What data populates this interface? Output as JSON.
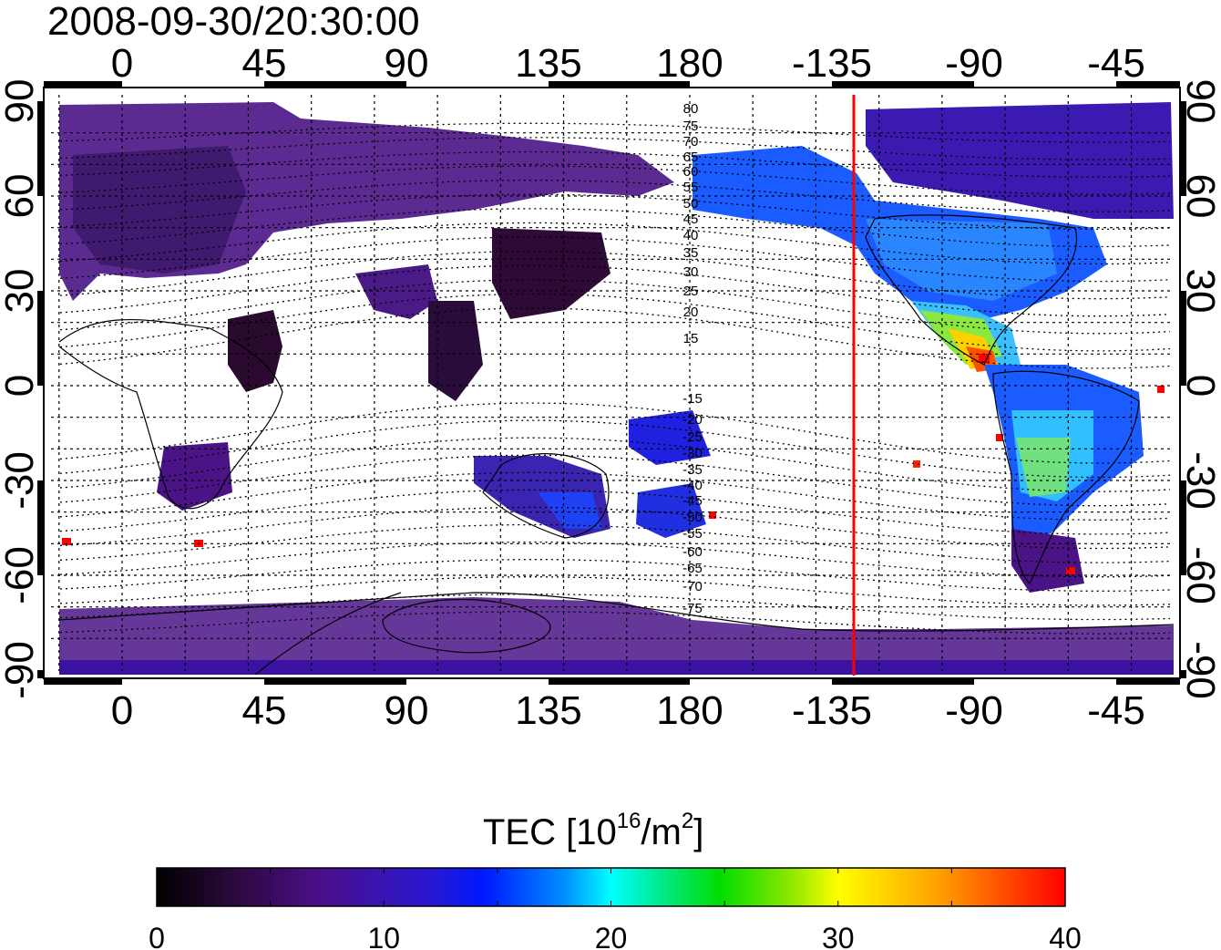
{
  "title": "2008-09-30/20:30:00",
  "map": {
    "x_ticks": [
      "0",
      "45",
      "90",
      "135",
      "180",
      "-135",
      "-90",
      "-45"
    ],
    "y_ticks": [
      "90",
      "60",
      "30",
      "0",
      "-30",
      "-60",
      "-90"
    ],
    "contour_labels_north": [
      "80",
      "75",
      "70",
      "65",
      "60",
      "55",
      "50",
      "45",
      "40",
      "35",
      "30",
      "25",
      "20",
      "15"
    ],
    "contour_labels_south": [
      "-15",
      "-20",
      "-25",
      "-30",
      "-35",
      "-40",
      "-45",
      "-50",
      "-55",
      "-60",
      "-65",
      "-70",
      "-75"
    ],
    "marker_line_longitude": -125,
    "marker_line_color": "#ff0000",
    "background_color": "#ffffff"
  },
  "colorbar": {
    "title_main": "TEC  [10",
    "title_exp": "16",
    "title_unit": "/m",
    "title_unit_exp": "2",
    "title_close": "]",
    "ticks": [
      "0",
      "10",
      "20",
      "30",
      "40"
    ],
    "min": 0,
    "max": 40,
    "colors": [
      "#000000",
      "#2a0838",
      "#4b0f8a",
      "#2a18d0",
      "#0018ff",
      "#0090ff",
      "#00ffff",
      "#00e880",
      "#00dd00",
      "#90e800",
      "#ffff00",
      "#ffa000",
      "#ff0000"
    ]
  }
}
